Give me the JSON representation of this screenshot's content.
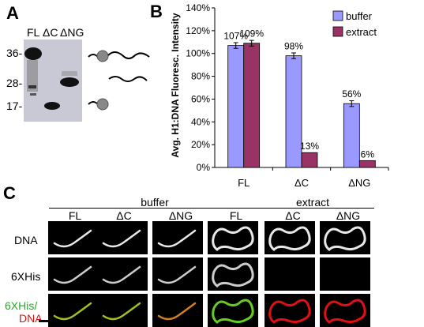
{
  "panelA": {
    "letter": "A",
    "lanes": [
      "FL",
      "ΔC",
      "ΔNG"
    ],
    "mw_markers": [
      "36-",
      "28-",
      "17-"
    ],
    "schematic_icons": [
      "fl-construct-icon",
      "dc-construct-icon",
      "dng-construct-icon"
    ]
  },
  "panelB": {
    "letter": "B"
  },
  "chart_data": {
    "type": "bar",
    "ylabel": "Avg. H1:DNA Fluoresc. Intensity",
    "categories": [
      "FL",
      "ΔC",
      "ΔNG"
    ],
    "series": [
      {
        "name": "buffer",
        "values": [
          107,
          98,
          56
        ],
        "labels": [
          "107%",
          "98%",
          "56%"
        ],
        "color": "#9999ff"
      },
      {
        "name": "extract",
        "values": [
          109,
          13,
          6
        ],
        "labels": [
          "109%",
          "13%",
          "6%"
        ],
        "color": "#993366"
      }
    ],
    "error_bars": true,
    "ylim": [
      0,
      140
    ],
    "yticks": [
      "0%",
      "20%",
      "40%",
      "60%",
      "80%",
      "100%",
      "120%",
      "140%"
    ],
    "legend": "top-right",
    "grid": false
  },
  "panelC": {
    "letter": "C",
    "groups": [
      "buffer",
      "extract"
    ],
    "columns": [
      "FL",
      "ΔC",
      "ΔNG",
      "FL",
      "ΔC",
      "ΔNG"
    ],
    "rows": [
      "DNA",
      "6XHis"
    ],
    "merge_label_top": "6XHis/",
    "merge_label_bottom": "DNA",
    "merge_top_color": "#22aa22",
    "merge_bottom_color": "#dd1111"
  }
}
